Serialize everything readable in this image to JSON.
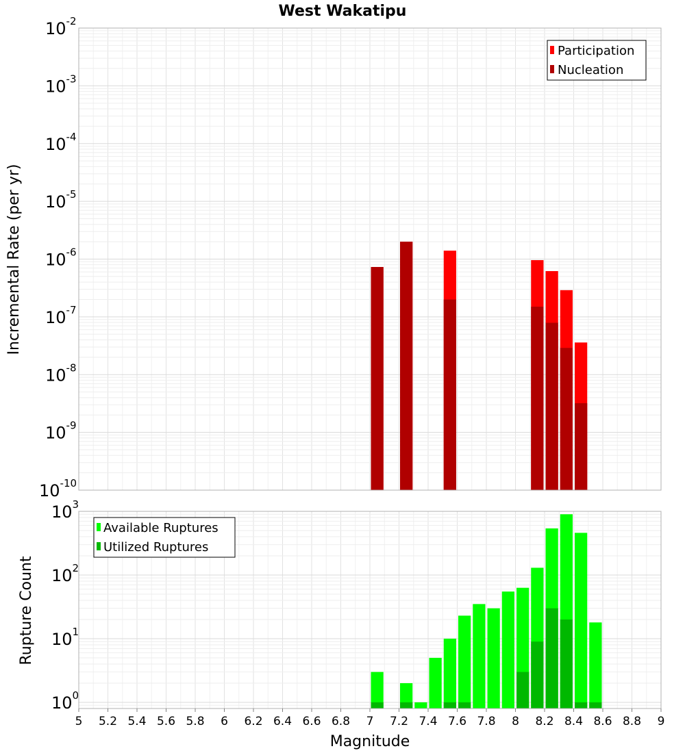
{
  "chart_data": [
    {
      "type": "bar",
      "title": "West Wakatipu",
      "xlabel": "",
      "ylabel": "Incremental Rate (per yr)",
      "yscale": "log",
      "xlim": [
        5,
        9
      ],
      "ylim": [
        1e-10,
        0.01
      ],
      "y_tick_labels": [
        {
          "base": "10",
          "exp": "-10",
          "value": 1e-10
        },
        {
          "base": "10",
          "exp": "-9",
          "value": 1e-09
        },
        {
          "base": "10",
          "exp": "-8",
          "value": 1e-08
        },
        {
          "base": "10",
          "exp": "-7",
          "value": 1e-07
        },
        {
          "base": "10",
          "exp": "-6",
          "value": 1e-06
        },
        {
          "base": "10",
          "exp": "-5",
          "value": 1e-05
        },
        {
          "base": "10",
          "exp": "-4",
          "value": 0.0001
        },
        {
          "base": "10",
          "exp": "-3",
          "value": 0.001
        },
        {
          "base": "10",
          "exp": "-2",
          "value": 0.01
        }
      ],
      "bin_width": 0.1,
      "grid": true,
      "legend_position": "top-right",
      "series": [
        {
          "name": "Participation",
          "color": "#ff0000",
          "points": [
            [
              7.05,
              7.3e-07
            ],
            [
              7.25,
              2e-06
            ],
            [
              7.55,
              1.4e-06
            ],
            [
              8.15,
              9.6e-07
            ],
            [
              8.25,
              6.2e-07
            ],
            [
              8.35,
              2.9e-07
            ],
            [
              8.45,
              3.6e-08
            ]
          ]
        },
        {
          "name": "Nucleation",
          "color": "#b00000",
          "points": [
            [
              7.05,
              7.3e-07
            ],
            [
              7.25,
              2e-06
            ],
            [
              7.55,
              2e-07
            ],
            [
              8.15,
              1.5e-07
            ],
            [
              8.25,
              7.9e-08
            ],
            [
              8.35,
              2.9e-08
            ],
            [
              8.45,
              3.2e-09
            ]
          ]
        }
      ]
    },
    {
      "type": "bar",
      "title": "",
      "xlabel": "Magnitude",
      "ylabel": "Rupture Count",
      "yscale": "log",
      "xlim": [
        5,
        9
      ],
      "ylim": [
        0.8,
        1000
      ],
      "y_tick_labels": [
        {
          "base": "10",
          "exp": "0",
          "value": 1
        },
        {
          "base": "10",
          "exp": "1",
          "value": 10
        },
        {
          "base": "10",
          "exp": "2",
          "value": 100
        },
        {
          "base": "10",
          "exp": "3",
          "value": 1000
        }
      ],
      "x_tick_labels": [
        "5",
        "5.2",
        "5.4",
        "5.6",
        "5.8",
        "6",
        "6.2",
        "6.4",
        "6.6",
        "6.8",
        "7",
        "7.2",
        "7.4",
        "7.6",
        "7.8",
        "8",
        "8.2",
        "8.4",
        "8.6",
        "8.8",
        "9"
      ],
      "bin_width": 0.1,
      "grid": true,
      "legend_position": "top-left",
      "series": [
        {
          "name": "Available Ruptures",
          "color": "#00ff00",
          "points": [
            [
              7.05,
              3
            ],
            [
              7.25,
              2
            ],
            [
              7.35,
              1
            ],
            [
              7.45,
              5
            ],
            [
              7.55,
              10
            ],
            [
              7.65,
              23
            ],
            [
              7.75,
              35
            ],
            [
              7.85,
              30
            ],
            [
              7.95,
              55
            ],
            [
              8.05,
              63
            ],
            [
              8.15,
              130
            ],
            [
              8.25,
              540
            ],
            [
              8.35,
              900
            ],
            [
              8.45,
              460
            ],
            [
              8.55,
              18
            ]
          ]
        },
        {
          "name": "Utilized Ruptures",
          "color": "#00b800",
          "points": [
            [
              7.05,
              1
            ],
            [
              7.25,
              1
            ],
            [
              7.55,
              1
            ],
            [
              7.65,
              1
            ],
            [
              8.05,
              3
            ],
            [
              8.15,
              9
            ],
            [
              8.25,
              30
            ],
            [
              8.35,
              20
            ],
            [
              8.45,
              1
            ],
            [
              8.55,
              1
            ]
          ]
        }
      ]
    }
  ]
}
